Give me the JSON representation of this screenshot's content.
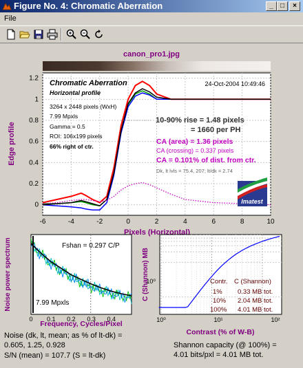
{
  "window": {
    "title": "Figure No. 4: Chromatic Aberration",
    "buttons": {
      "minimize": "_",
      "maximize": "□",
      "close": "×"
    }
  },
  "menu": {
    "file": "File"
  },
  "toolbar": {
    "icons": [
      "new-file-icon",
      "open-folder-icon",
      "save-icon",
      "print-icon",
      "zoom-in-icon",
      "zoom-out-icon",
      "rotate-icon"
    ]
  },
  "figure": {
    "filename": "canon_pro1.jpg",
    "top": {
      "title": "Chromatic Aberration",
      "subtitle": "Horizontal profile",
      "date": "24-Oct-2004 10:49:46",
      "info": [
        "3264 x 2448 pixels (WxH)",
        "7.99 Mpxls",
        "Gamma = 0.5",
        "ROI: 106x199 pixels",
        "66% right of ctr."
      ],
      "rise1": "10-90% rise = 1.48 pixels",
      "rise2": "= 1660 per PH",
      "ca_area": "CA (area) = 1.36 pixels",
      "ca_cross": "CA (crossing) = 0.337 pixels",
      "ca_pct": "CA = 0.101% of dist. from ctr.",
      "dk_line": "Dk, lt lvls = 75.4, 207;  lt/dk = 2.74",
      "logo": "Imatest",
      "ylabel": "Edge profile",
      "xlabel": "Pixels (Horizontal)",
      "xticks": [
        "-6",
        "-4",
        "-2",
        "0",
        "2",
        "4",
        "6",
        "8",
        "10"
      ],
      "yticks": [
        "1.2",
        "1",
        "0.8",
        "0.6",
        "0.4",
        "0.2",
        "0"
      ],
      "colors": {
        "red": "#ff0000",
        "green": "#00a000",
        "blue": "#0000ff",
        "black": "#000000",
        "magenta": "#c000c0"
      }
    },
    "noise": {
      "ylabel": "Noise power spectrum",
      "xlabel": "Frequency, Cycles/Pixel",
      "fshan": "Fshan = 0.297 C/P",
      "mpx": "7.99 Mpxls",
      "xticks": [
        "0",
        "0.1",
        "0.2",
        "0.3",
        "0.4"
      ],
      "note1": "Noise (dk, lt, mean; as % of lt-dk) =",
      "note2": "0.605,  1.25, 0.928",
      "note3": "S/N (mean) = 107.7  (S = lt-dk)"
    },
    "shannon": {
      "ylabel": "C (Shannon) MB",
      "xlabel": "Contrast (% of W-B)",
      "ytick": "10⁰",
      "xticks": [
        "10⁰",
        "10¹",
        "10²"
      ],
      "col1": "Contr.",
      "col2": "C (Shannon)",
      "rows": [
        [
          "1%",
          "0.33 MB tot."
        ],
        [
          "10%",
          "2.04 MB tot."
        ],
        [
          "100%",
          "4.01 MB tot."
        ]
      ],
      "note1": "Shannon capacity (@ 100%) =",
      "note2": "4.01 bits/pxl = 4.01 MB tot."
    }
  },
  "chart_data": [
    {
      "type": "line",
      "title": "Chromatic Aberration",
      "xlabel": "Pixels (Horizontal)",
      "ylabel": "Edge profile",
      "xlim": [
        -6,
        10
      ],
      "ylim": [
        -0.1,
        1.25
      ],
      "x": [
        -6,
        -5,
        -4,
        -3.3,
        -3,
        -2.5,
        -2,
        -1.5,
        -1,
        -0.5,
        0,
        0.5,
        1,
        1.5,
        2,
        3,
        4,
        6,
        8,
        10
      ],
      "series": [
        {
          "color": "red",
          "values": [
            0.02,
            0.05,
            0.08,
            0.11,
            0.09,
            0.05,
            0.02,
            0.08,
            0.35,
            0.75,
            1.0,
            1.13,
            1.17,
            1.13,
            1.05,
            1.0,
            1.0,
            1.0,
            1.0,
            1.0
          ]
        },
        {
          "color": "green",
          "values": [
            0.01,
            0.01,
            0.02,
            0.03,
            0.02,
            0.0,
            -0.01,
            0.05,
            0.3,
            0.7,
            0.95,
            1.05,
            1.08,
            1.05,
            1.0,
            1.0,
            1.0,
            1.0,
            1.0,
            1.0
          ]
        },
        {
          "color": "blue",
          "values": [
            0.0,
            -0.01,
            -0.02,
            -0.03,
            -0.04,
            -0.05,
            -0.05,
            0.02,
            0.28,
            0.68,
            0.93,
            1.03,
            1.06,
            1.04,
            1.0,
            1.0,
            1.0,
            1.0,
            1.0,
            1.0
          ]
        },
        {
          "color": "black",
          "values": [
            0.0,
            0.01,
            0.02,
            0.04,
            0.03,
            0.01,
            -0.01,
            0.05,
            0.3,
            0.7,
            0.96,
            1.06,
            1.1,
            1.07,
            1.02,
            1.0,
            1.0,
            1.0,
            1.0,
            1.0
          ]
        },
        {
          "color": "magenta",
          "style": "dotted",
          "values": [
            0.01,
            0.02,
            0.04,
            0.05,
            0.05,
            0.04,
            0.03,
            0.04,
            0.08,
            0.14,
            0.18,
            0.2,
            0.21,
            0.19,
            0.16,
            0.1,
            0.05,
            0.02,
            0.01,
            0.0
          ]
        }
      ]
    },
    {
      "type": "line",
      "xlabel": "Frequency, Cycles/Pixel",
      "ylabel": "Noise power spectrum",
      "xlim": [
        0,
        0.5
      ],
      "x": [
        0,
        0.05,
        0.1,
        0.15,
        0.2,
        0.25,
        0.3,
        0.35,
        0.4,
        0.45,
        0.5
      ],
      "series": [
        {
          "color": "black",
          "values": [
            1.0,
            0.85,
            0.72,
            0.62,
            0.52,
            0.45,
            0.38,
            0.32,
            0.27,
            0.23,
            0.2
          ]
        }
      ]
    },
    {
      "type": "line",
      "xlabel": "Contrast (% of W-B)",
      "ylabel": "C (Shannon) MB",
      "x": [
        1,
        10,
        100,
        200
      ],
      "series": [
        {
          "color": "blue",
          "values": [
            0.33,
            2.04,
            4.01,
            4.6
          ]
        }
      ]
    }
  ]
}
